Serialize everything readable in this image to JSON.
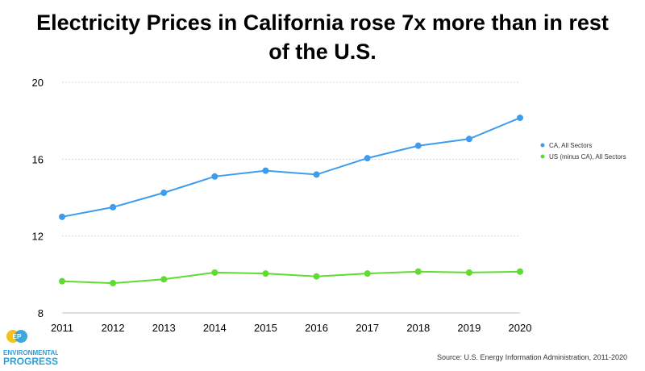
{
  "title_line1": "Electricity Prices in California rose 7x more than in rest",
  "title_line2": "of the U.S.",
  "source": "Source: U.S. Energy Information Administration, 2011-2020",
  "logo": {
    "line1": "ENVIRONMENTAL",
    "line2": "PROGRESS",
    "color": "#2a9fd8"
  },
  "chart_data": {
    "type": "line",
    "x": [
      2011,
      2012,
      2013,
      2014,
      2015,
      2016,
      2017,
      2018,
      2019,
      2020
    ],
    "ylim": [
      8,
      20
    ],
    "yticks": [
      8,
      12,
      16,
      20
    ],
    "grid": true,
    "legend_position": "right",
    "series": [
      {
        "name": "CA, All Sectors",
        "color": "#3d9cf0",
        "values": [
          13.0,
          13.5,
          14.25,
          15.1,
          15.4,
          15.2,
          16.05,
          16.7,
          17.05,
          18.15
        ]
      },
      {
        "name": "US (minus CA), All Sectors",
        "color": "#5fdc2f",
        "values": [
          9.65,
          9.55,
          9.75,
          10.1,
          10.05,
          9.9,
          10.05,
          10.15,
          10.1,
          10.15
        ]
      }
    ]
  }
}
